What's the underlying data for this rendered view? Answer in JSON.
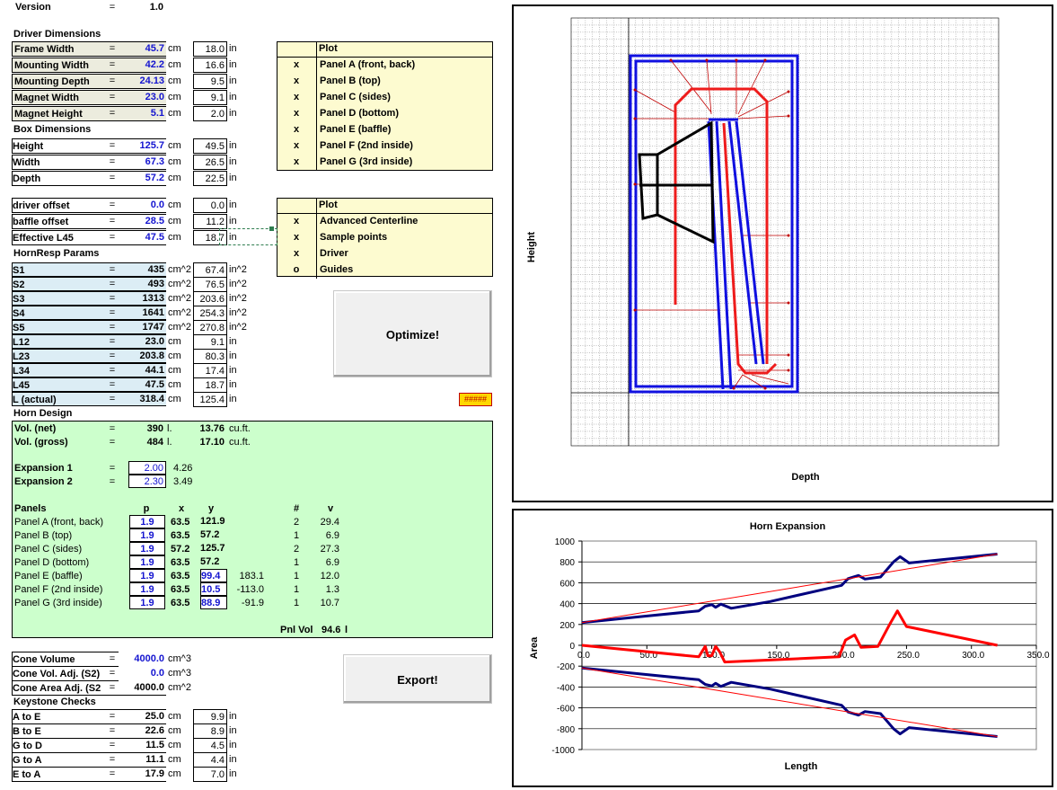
{
  "version": {
    "label": "Version",
    "eq": "=",
    "value": "1.0"
  },
  "headings": {
    "driver": "Driver Dimensions",
    "box": "Box Dimensions",
    "hornresp": "HornResp Params",
    "horn_design": "Horn Design",
    "keystone": "Keystone Checks"
  },
  "units": {
    "cm": "cm",
    "in": "in",
    "cm2": "cm^2",
    "in2": "in^2",
    "cm3": "cm^3",
    "l": "l.",
    "cuft": "cu.ft."
  },
  "driver_rows": [
    {
      "label": "Frame Width",
      "cm": "45.7",
      "in": "18.0"
    },
    {
      "label": "Mounting Width",
      "cm": "42.2",
      "in": "16.6"
    },
    {
      "label": "Mounting Depth",
      "cm": "24.13",
      "in": "9.5"
    },
    {
      "label": "Magnet Width",
      "cm": "23.0",
      "in": "9.1"
    },
    {
      "label": "Magnet Height",
      "cm": "5.1",
      "in": "2.0"
    }
  ],
  "box_rows": [
    {
      "label": "Height",
      "cm": "125.7",
      "in": "49.5"
    },
    {
      "label": "Width",
      "cm": "67.3",
      "in": "26.5"
    },
    {
      "label": "Depth",
      "cm": "57.2",
      "in": "22.5"
    }
  ],
  "offset_rows": [
    {
      "label": "driver offset",
      "cm": "0.0",
      "in": "0.0"
    },
    {
      "label": "baffle offset",
      "cm": "28.5",
      "in": "11.2"
    },
    {
      "label": "Effective L45",
      "cm": "47.5",
      "in": "18.7"
    }
  ],
  "hornresp_rows": [
    {
      "label": "S1",
      "v": "435",
      "u": "cm^2",
      "in": "67.4",
      "iu": "in^2"
    },
    {
      "label": "S2",
      "v": "493",
      "u": "cm^2",
      "in": "76.5",
      "iu": "in^2"
    },
    {
      "label": "S3",
      "v": "1313",
      "u": "cm^2",
      "in": "203.6",
      "iu": "in^2"
    },
    {
      "label": "S4",
      "v": "1641",
      "u": "cm^2",
      "in": "254.3",
      "iu": "in^2"
    },
    {
      "label": "S5",
      "v": "1747",
      "u": "cm^2",
      "in": "270.8",
      "iu": "in^2"
    },
    {
      "label": "L12",
      "v": "23.0",
      "u": "cm",
      "in": "9.1",
      "iu": "in"
    },
    {
      "label": "L23",
      "v": "203.8",
      "u": "cm",
      "in": "80.3",
      "iu": "in"
    },
    {
      "label": "L34",
      "v": "44.1",
      "u": "cm",
      "in": "17.4",
      "iu": "in"
    },
    {
      "label": "L45",
      "v": "47.5",
      "u": "cm",
      "in": "18.7",
      "iu": "in"
    },
    {
      "label": "L (actual)",
      "v": "318.4",
      "u": "cm",
      "in": "125.4",
      "iu": "in"
    }
  ],
  "plot_table_1": {
    "header": "Plot",
    "rows": [
      {
        "mark": "x",
        "label": "Panel A (front, back)"
      },
      {
        "mark": "x",
        "label": "Panel B (top)"
      },
      {
        "mark": "x",
        "label": "Panel C (sides)"
      },
      {
        "mark": "x",
        "label": "Panel D (bottom)"
      },
      {
        "mark": "x",
        "label": "Panel E (baffle)"
      },
      {
        "mark": "x",
        "label": "Panel F (2nd inside)"
      },
      {
        "mark": "x",
        "label": "Panel G (3rd inside)"
      }
    ]
  },
  "plot_table_2": {
    "header": "Plot",
    "rows": [
      {
        "mark": "x",
        "label": "Advanced Centerline"
      },
      {
        "mark": "x",
        "label": "Sample points"
      },
      {
        "mark": "x",
        "label": "Driver"
      },
      {
        "mark": "o",
        "label": "Guides"
      }
    ]
  },
  "buttons": {
    "optimize": "Optimize!",
    "export": "Export!"
  },
  "error_cell": "#####",
  "horn_design": {
    "vol_net": {
      "label": "Vol. (net)",
      "v": "390",
      "u": "l.",
      "alt": "13.76",
      "au": "cu.ft."
    },
    "vol_gross": {
      "label": "Vol. (gross)",
      "v": "484",
      "u": "l.",
      "alt": "17.10",
      "au": "cu.ft."
    },
    "exp1": {
      "label": "Expansion 1",
      "v": "2.00",
      "alt": "4.26"
    },
    "exp2": {
      "label": "Expansion 2",
      "v": "2.30",
      "alt": "3.49"
    },
    "panel_headers": {
      "panels": "Panels",
      "p": "p",
      "x": "x",
      "y": "y",
      "n": "#",
      "v": "v"
    },
    "panels": [
      {
        "label": "Panel A (front, back)",
        "p": "1.9",
        "x": "63.5",
        "y": "121.9",
        "extra": "",
        "n": "2",
        "v": "29.4"
      },
      {
        "label": "Panel B (top)",
        "p": "1.9",
        "x": "63.5",
        "y": "57.2",
        "extra": "",
        "n": "1",
        "v": "6.9"
      },
      {
        "label": "Panel C (sides)",
        "p": "1.9",
        "x": "57.2",
        "y": "125.7",
        "extra": "",
        "n": "2",
        "v": "27.3"
      },
      {
        "label": "Panel D (bottom)",
        "p": "1.9",
        "x": "63.5",
        "y": "57.2",
        "extra": "",
        "n": "1",
        "v": "6.9"
      },
      {
        "label": "Panel E (baffle)",
        "p": "1.9",
        "x": "63.5",
        "y": "99.4",
        "extra": "183.1",
        "n": "1",
        "v": "12.0"
      },
      {
        "label": "Panel F (2nd inside)",
        "p": "1.9",
        "x": "63.5",
        "y": "10.5",
        "extra": "-113.0",
        "n": "1",
        "v": "1.3"
      },
      {
        "label": "Panel G (3rd inside)",
        "p": "1.9",
        "x": "63.5",
        "y": "88.9",
        "extra": "-91.9",
        "n": "1",
        "v": "10.7"
      }
    ],
    "pnl_vol": {
      "label": "Pnl Vol",
      "v": "94.6",
      "u": "l"
    }
  },
  "cone_rows": [
    {
      "label": "Cone Volume",
      "eq": "=",
      "v": "4000.0",
      "u": "cm^3"
    },
    {
      "label": "Cone Vol. Adj. (S2)",
      "eq": "=",
      "v": "0.0",
      "u": "cm^3"
    },
    {
      "label": "Cone Area Adj. (S2",
      "eq": "=",
      "v": "4000.0",
      "u": "cm^2"
    }
  ],
  "keystone_rows": [
    {
      "label": "A to E",
      "cm": "25.0",
      "in": "9.9"
    },
    {
      "label": "B to E",
      "cm": "22.6",
      "in": "8.9"
    },
    {
      "label": "G to D",
      "cm": "11.5",
      "in": "4.5"
    },
    {
      "label": "G to A",
      "cm": "11.1",
      "in": "4.4"
    },
    {
      "label": "E to A",
      "cm": "17.9",
      "in": "7.0"
    }
  ],
  "layout_chart": {
    "xlabel": "Depth",
    "ylabel": "Height"
  },
  "chart_data": {
    "type": "line",
    "title": "Horn Expansion",
    "xlabel": "Length",
    "ylabel": "Area",
    "xlim": [
      0,
      350
    ],
    "ylim": [
      -1000,
      1000
    ],
    "x_ticks": [
      "0.0",
      "50.0",
      "100.0",
      "150.0",
      "200.0",
      "250.0",
      "300.0",
      "350.0"
    ],
    "y_ticks": [
      "1000",
      "800",
      "600",
      "400",
      "200",
      "0",
      "-200",
      "-400",
      "-600",
      "-800",
      "-1000"
    ],
    "series": [
      {
        "color": "#00007f",
        "width": 3,
        "points": [
          [
            0,
            218
          ],
          [
            45,
            275
          ],
          [
            90,
            330
          ],
          [
            95,
            375
          ],
          [
            100,
            390
          ],
          [
            103,
            365
          ],
          [
            107,
            395
          ],
          [
            115,
            355
          ],
          [
            145,
            420
          ],
          [
            200,
            575
          ],
          [
            205,
            640
          ],
          [
            213,
            670
          ],
          [
            218,
            635
          ],
          [
            230,
            655
          ],
          [
            240,
            800
          ],
          [
            245,
            850
          ],
          [
            252,
            790
          ],
          [
            320,
            875
          ]
        ]
      },
      {
        "color": "#00007f",
        "width": 3,
        "points": [
          [
            0,
            -218
          ],
          [
            45,
            -275
          ],
          [
            90,
            -330
          ],
          [
            95,
            -375
          ],
          [
            100,
            -390
          ],
          [
            103,
            -365
          ],
          [
            107,
            -395
          ],
          [
            115,
            -355
          ],
          [
            145,
            -420
          ],
          [
            200,
            -575
          ],
          [
            205,
            -640
          ],
          [
            213,
            -670
          ],
          [
            218,
            -635
          ],
          [
            230,
            -655
          ],
          [
            240,
            -800
          ],
          [
            245,
            -850
          ],
          [
            252,
            -790
          ],
          [
            320,
            -875
          ]
        ]
      },
      {
        "color": "#ff0000",
        "width": 1,
        "points": [
          [
            0,
            218
          ],
          [
            320,
            875
          ]
        ]
      },
      {
        "color": "#ff0000",
        "width": 1,
        "points": [
          [
            0,
            -218
          ],
          [
            320,
            -875
          ]
        ]
      },
      {
        "color": "#ff0000",
        "width": 3,
        "points": [
          [
            0,
            0
          ],
          [
            90,
            -110
          ],
          [
            95,
            -10
          ],
          [
            97,
            -100
          ],
          [
            100,
            -100
          ],
          [
            103,
            -10
          ],
          [
            106,
            -60
          ],
          [
            110,
            -160
          ],
          [
            198,
            -110
          ],
          [
            203,
            50
          ],
          [
            210,
            100
          ],
          [
            215,
            -20
          ],
          [
            228,
            -10
          ],
          [
            237,
            200
          ],
          [
            243,
            330
          ],
          [
            250,
            180
          ],
          [
            320,
            0
          ]
        ]
      }
    ]
  }
}
